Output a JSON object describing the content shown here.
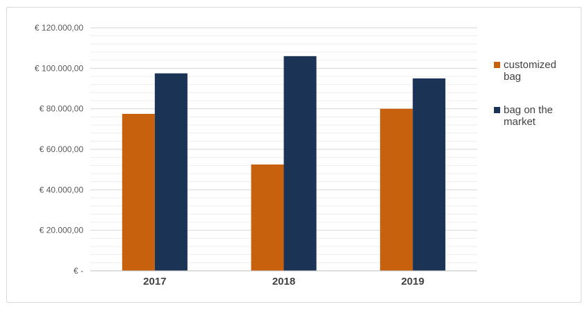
{
  "chart_data": {
    "type": "bar",
    "title": "",
    "xlabel": "",
    "ylabel": "",
    "categories": [
      "2017",
      "2018",
      "2019"
    ],
    "series": [
      {
        "name": "customized bag",
        "color": "#c7610e",
        "values": [
          77500,
          52500,
          80000
        ]
      },
      {
        "name": "bag on the market",
        "color": "#1b3355",
        "values": [
          97500,
          106000,
          95000
        ]
      }
    ],
    "ylim": [
      0,
      120000
    ],
    "yticks": [
      {
        "value": 120000,
        "label": "€ 120.000,00"
      },
      {
        "value": 100000,
        "label": "€ 100.000,00"
      },
      {
        "value": 80000,
        "label": "€ 80.000,00"
      },
      {
        "value": 60000,
        "label": "€ 60.000,00"
      },
      {
        "value": 40000,
        "label": "€ 40.000,00"
      },
      {
        "value": 20000,
        "label": "€ 20.000,00"
      },
      {
        "value": 0,
        "label": "€ -"
      }
    ],
    "grid": {
      "major_step": 20000,
      "minor_step": 4000,
      "major_color": "#d6d6d6",
      "minor_color": "#ededed",
      "axis_color": "#bfbfbf"
    },
    "legend_position": "right",
    "colors": {
      "ytick_text": "#595959",
      "xtick_text": "#404040",
      "legend_text": "#404040",
      "frame_border": "#d9d9d9",
      "background": "#ffffff"
    }
  }
}
